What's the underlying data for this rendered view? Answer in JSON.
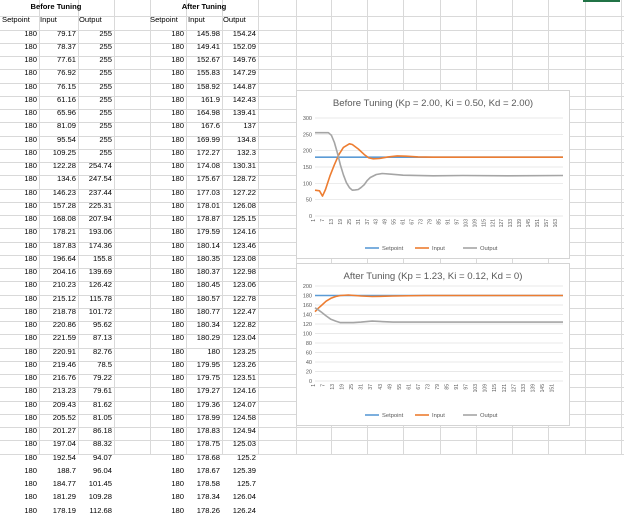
{
  "headers": {
    "before_title": "Before Tuning",
    "after_title": "After Tuning",
    "before_cols": [
      "Setpoint",
      "Input",
      "Output"
    ],
    "after_cols": [
      "Setpoint",
      "Input",
      "Output"
    ]
  },
  "before_rows": [
    [
      "180",
      "79.17",
      "255"
    ],
    [
      "180",
      "78.37",
      "255"
    ],
    [
      "180",
      "77.61",
      "255"
    ],
    [
      "180",
      "76.92",
      "255"
    ],
    [
      "180",
      "76.15",
      "255"
    ],
    [
      "180",
      "61.16",
      "255"
    ],
    [
      "180",
      "65.96",
      "255"
    ],
    [
      "180",
      "81.09",
      "255"
    ],
    [
      "180",
      "95.54",
      "255"
    ],
    [
      "180",
      "109.25",
      "255"
    ],
    [
      "180",
      "122.28",
      "254.74"
    ],
    [
      "180",
      "134.6",
      "247.54"
    ],
    [
      "180",
      "146.23",
      "237.44"
    ],
    [
      "180",
      "157.28",
      "225.31"
    ],
    [
      "180",
      "168.08",
      "207.94"
    ],
    [
      "180",
      "178.21",
      "193.06"
    ],
    [
      "180",
      "187.83",
      "174.36"
    ],
    [
      "180",
      "196.64",
      "155.8"
    ],
    [
      "180",
      "204.16",
      "139.69"
    ],
    [
      "180",
      "210.23",
      "126.42"
    ],
    [
      "180",
      "215.12",
      "115.78"
    ],
    [
      "180",
      "218.78",
      "101.72"
    ],
    [
      "180",
      "220.86",
      "95.62"
    ],
    [
      "180",
      "221.59",
      "87.13"
    ],
    [
      "180",
      "220.91",
      "82.76"
    ],
    [
      "180",
      "219.46",
      "78.5"
    ],
    [
      "180",
      "216.76",
      "79.22"
    ],
    [
      "180",
      "213.23",
      "79.61"
    ],
    [
      "180",
      "209.43",
      "81.62"
    ],
    [
      "180",
      "205.52",
      "81.05"
    ],
    [
      "180",
      "201.27",
      "86.18"
    ],
    [
      "180",
      "197.04",
      "88.32"
    ],
    [
      "180",
      "192.54",
      "94.07"
    ],
    [
      "180",
      "188.7",
      "96.04"
    ],
    [
      "180",
      "184.77",
      "101.45"
    ],
    [
      "180",
      "181.29",
      "109.28"
    ],
    [
      "180",
      "178.19",
      "112.68"
    ]
  ],
  "after_rows": [
    [
      "180",
      "145.98",
      "154.24"
    ],
    [
      "180",
      "149.41",
      "152.09"
    ],
    [
      "180",
      "152.67",
      "149.76"
    ],
    [
      "180",
      "155.83",
      "147.29"
    ],
    [
      "180",
      "158.92",
      "144.87"
    ],
    [
      "180",
      "161.9",
      "142.43"
    ],
    [
      "180",
      "164.98",
      "139.41"
    ],
    [
      "180",
      "167.6",
      "137"
    ],
    [
      "180",
      "169.99",
      "134.8"
    ],
    [
      "180",
      "172.27",
      "132.3"
    ],
    [
      "180",
      "174.08",
      "130.31"
    ],
    [
      "180",
      "175.67",
      "128.72"
    ],
    [
      "180",
      "177.03",
      "127.22"
    ],
    [
      "180",
      "178.01",
      "126.08"
    ],
    [
      "180",
      "178.87",
      "125.15"
    ],
    [
      "180",
      "179.59",
      "124.16"
    ],
    [
      "180",
      "180.14",
      "123.46"
    ],
    [
      "180",
      "180.35",
      "123.08"
    ],
    [
      "180",
      "180.37",
      "122.98"
    ],
    [
      "180",
      "180.45",
      "123.06"
    ],
    [
      "180",
      "180.57",
      "122.78"
    ],
    [
      "180",
      "180.77",
      "122.47"
    ],
    [
      "180",
      "180.34",
      "122.82"
    ],
    [
      "180",
      "180.29",
      "123.04"
    ],
    [
      "180",
      "180",
      "123.25"
    ],
    [
      "180",
      "179.95",
      "123.26"
    ],
    [
      "180",
      "179.75",
      "123.51"
    ],
    [
      "180",
      "179.27",
      "124.16"
    ],
    [
      "180",
      "179.36",
      "124.07"
    ],
    [
      "180",
      "178.99",
      "124.58"
    ],
    [
      "180",
      "178.83",
      "124.94"
    ],
    [
      "180",
      "178.75",
      "125.03"
    ],
    [
      "180",
      "178.68",
      "125.2"
    ],
    [
      "180",
      "178.67",
      "125.39"
    ],
    [
      "180",
      "178.58",
      "125.7"
    ],
    [
      "180",
      "178.34",
      "126.04"
    ],
    [
      "180",
      "178.26",
      "126.24"
    ]
  ],
  "colors": {
    "setpoint": "#5b9bd5",
    "input": "#ed7d31",
    "output": "#a5a5a5"
  },
  "chart_data": [
    {
      "type": "line",
      "title": "Before Tuning (Kp = 2.00, Ki = 0.50, Kd = 2.00)",
      "ylim": [
        0,
        300
      ],
      "yticks": [
        "0",
        "50",
        "100",
        "150",
        "200",
        "250",
        "300"
      ],
      "xticks": [
        "1",
        "7",
        "13",
        "19",
        "25",
        "31",
        "37",
        "43",
        "49",
        "55",
        "61",
        "67",
        "73",
        "79",
        "85",
        "91",
        "97",
        "103",
        "109",
        "115",
        "121",
        "127",
        "133",
        "139",
        "145",
        "151",
        "157",
        "163"
      ],
      "legend": "bottom",
      "x_count": 167,
      "series": [
        {
          "name": "Setpoint",
          "values": [
            [
              1,
              180
            ],
            [
              167,
              180
            ]
          ]
        },
        {
          "name": "Input",
          "values": [
            [
              1,
              79
            ],
            [
              4,
              77
            ],
            [
              6,
              61
            ],
            [
              8,
              81
            ],
            [
              11,
              122
            ],
            [
              14,
              157
            ],
            [
              17,
              188
            ],
            [
              20,
              210
            ],
            [
              24,
              221
            ],
            [
              26,
              219
            ],
            [
              30,
              205
            ],
            [
              34,
              188
            ],
            [
              37,
              178
            ],
            [
              40,
              175
            ],
            [
              44,
              176
            ],
            [
              50,
              181
            ],
            [
              56,
              184
            ],
            [
              62,
              183
            ],
            [
              70,
              181
            ],
            [
              80,
              180
            ],
            [
              100,
              180
            ],
            [
              167,
              180
            ]
          ]
        },
        {
          "name": "Output",
          "values": [
            [
              1,
              255
            ],
            [
              10,
              255
            ],
            [
              12,
              247
            ],
            [
              14,
              225
            ],
            [
              16,
              193
            ],
            [
              18,
              156
            ],
            [
              20,
              126
            ],
            [
              22,
              102
            ],
            [
              24,
              87
            ],
            [
              26,
              79
            ],
            [
              28,
              80
            ],
            [
              30,
              81
            ],
            [
              32,
              88
            ],
            [
              34,
              96
            ],
            [
              36,
              109
            ],
            [
              38,
              118
            ],
            [
              42,
              127
            ],
            [
              46,
              130
            ],
            [
              52,
              128
            ],
            [
              60,
              125
            ],
            [
              80,
              123
            ],
            [
              100,
              124
            ],
            [
              130,
              123
            ],
            [
              167,
              124
            ]
          ]
        }
      ]
    },
    {
      "type": "line",
      "title": "After Tuning (Kp = 1.23, Ki = 0.12, Kd = 0)",
      "ylim": [
        0,
        200
      ],
      "yticks": [
        "0",
        "20",
        "40",
        "60",
        "80",
        "100",
        "120",
        "140",
        "160",
        "180",
        "200"
      ],
      "xticks": [
        "1",
        "7",
        "13",
        "19",
        "25",
        "31",
        "37",
        "43",
        "49",
        "55",
        "61",
        "67",
        "73",
        "79",
        "85",
        "91",
        "97",
        "103",
        "109",
        "115",
        "121",
        "127",
        "133",
        "139",
        "145",
        "151"
      ],
      "legend": "bottom",
      "x_count": 157,
      "series": [
        {
          "name": "Setpoint",
          "values": [
            [
              1,
              180
            ],
            [
              157,
              180
            ]
          ]
        },
        {
          "name": "Input",
          "values": [
            [
              1,
              146
            ],
            [
              3,
              153
            ],
            [
              5,
              159
            ],
            [
              8,
              168
            ],
            [
              11,
              174
            ],
            [
              14,
              178
            ],
            [
              17,
              180
            ],
            [
              22,
              181
            ],
            [
              30,
              179
            ],
            [
              37,
              178
            ],
            [
              50,
              179
            ],
            [
              70,
              180
            ],
            [
              100,
              180
            ],
            [
              157,
              180
            ]
          ]
        },
        {
          "name": "Output",
          "values": [
            [
              1,
              154
            ],
            [
              3,
              150
            ],
            [
              5,
              145
            ],
            [
              8,
              137
            ],
            [
              11,
              130
            ],
            [
              14,
              126
            ],
            [
              17,
              123
            ],
            [
              21,
              123
            ],
            [
              25,
              123
            ],
            [
              30,
              124
            ],
            [
              37,
              126
            ],
            [
              50,
              124
            ],
            [
              70,
              124
            ],
            [
              100,
              124
            ],
            [
              157,
              124
            ]
          ]
        }
      ]
    }
  ]
}
